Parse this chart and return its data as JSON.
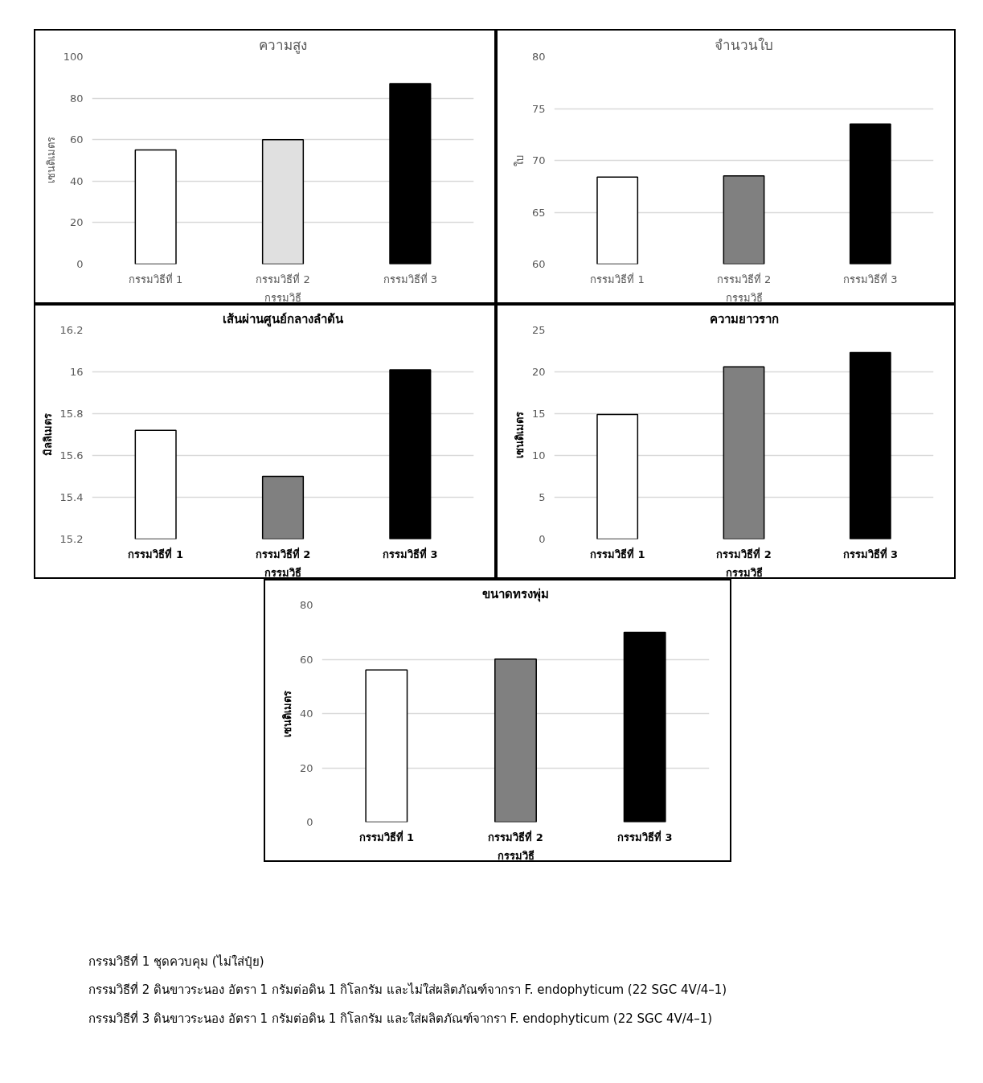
{
  "chart_data": [
    {
      "type": "bar",
      "title": "ความสูง",
      "xlabel": "กรรมวิธี",
      "ylabel": "เซนติเมตร",
      "categories": [
        "กรรมวิธีที่ 1",
        "กรรมวิธีที่ 2",
        "กรรมวิธีที่ 3"
      ],
      "values": [
        55,
        60,
        87
      ],
      "colors": [
        "#ffffff",
        "#e0e0e0",
        "#000000"
      ],
      "ylim": [
        0,
        100
      ],
      "yticks": [
        0,
        20,
        40,
        60,
        80,
        100
      ],
      "grid": "y"
    },
    {
      "type": "bar",
      "title": "จำนวนใบ",
      "xlabel": "กรรมวิธี",
      "ylabel": "ใบ",
      "categories": [
        "กรรมวิธีที่ 1",
        "กรรมวิธีที่ 2",
        "กรรมวิธีที่ 3"
      ],
      "values": [
        68.4,
        68.5,
        73.5
      ],
      "colors": [
        "#ffffff",
        "#808080",
        "#000000"
      ],
      "ylim": [
        60,
        80
      ],
      "yticks": [
        60,
        65,
        70,
        75,
        80
      ],
      "grid": "y"
    },
    {
      "type": "bar",
      "title": "เส้นผ่านศูนย์กลางลำต้น",
      "xlabel": "กรรมวิธี",
      "ylabel": "มิลลิเมตร",
      "categories": [
        "กรรมวิธีที่ 1",
        "กรรมวิธีที่ 2",
        "กรรมวิธีที่ 3"
      ],
      "values": [
        15.72,
        15.5,
        16.01
      ],
      "colors": [
        "#ffffff",
        "#808080",
        "#000000"
      ],
      "ylim": [
        15.2,
        16.2
      ],
      "yticks": [
        15.2,
        15.4,
        15.6,
        15.8,
        16,
        16.2
      ],
      "grid": "y"
    },
    {
      "type": "bar",
      "title": "ความยาวราก",
      "xlabel": "กรรมวิธี",
      "ylabel": "เซนติเมตร",
      "categories": [
        "กรรมวิธีที่ 1",
        "กรรมวิธีที่ 2",
        "กรรมวิธีที่ 3"
      ],
      "values": [
        14.9,
        20.6,
        22.3
      ],
      "colors": [
        "#ffffff",
        "#808080",
        "#000000"
      ],
      "ylim": [
        0,
        25
      ],
      "yticks": [
        0,
        5,
        10,
        15,
        20,
        25
      ],
      "grid": "y"
    },
    {
      "type": "bar",
      "title": "ขนาดทรงพุ่ม",
      "xlabel": "กรรมวิธี",
      "ylabel": "เซนติเมตร",
      "categories": [
        "กรรมวิธีที่ 1",
        "กรรมวิธีที่ 2",
        "กรรมวิธีที่ 3"
      ],
      "values": [
        56.1,
        60.1,
        69.9
      ],
      "colors": [
        "#ffffff",
        "#808080",
        "#000000"
      ],
      "ylim": [
        0,
        80
      ],
      "yticks": [
        0,
        20,
        40,
        60,
        80
      ],
      "grid": "y",
      "annotations": [
        "กรรมวิธีที่ 1 ชุดควบคุม (ไม่ใส่ปุ๋ย)",
        "กรรมวิธีที่ 2 ดินขาวระนอง อัตรา 1 กรัมต่อดิน 1 กิโลกรัม และไม่ใส่ผลิตภัณฑ์จากรา F. endophyticum (22 SGC 4V/4–1)",
        "กรรมวิธีที่ 3 ดินขาวระนอง อัตรา 1 กรัมต่อดิน 1 กิโลกรัม และใส่ผลิตภัณฑ์จากรา F. endophyticum (22 SGC 4V/4–1)"
      ]
    }
  ]
}
